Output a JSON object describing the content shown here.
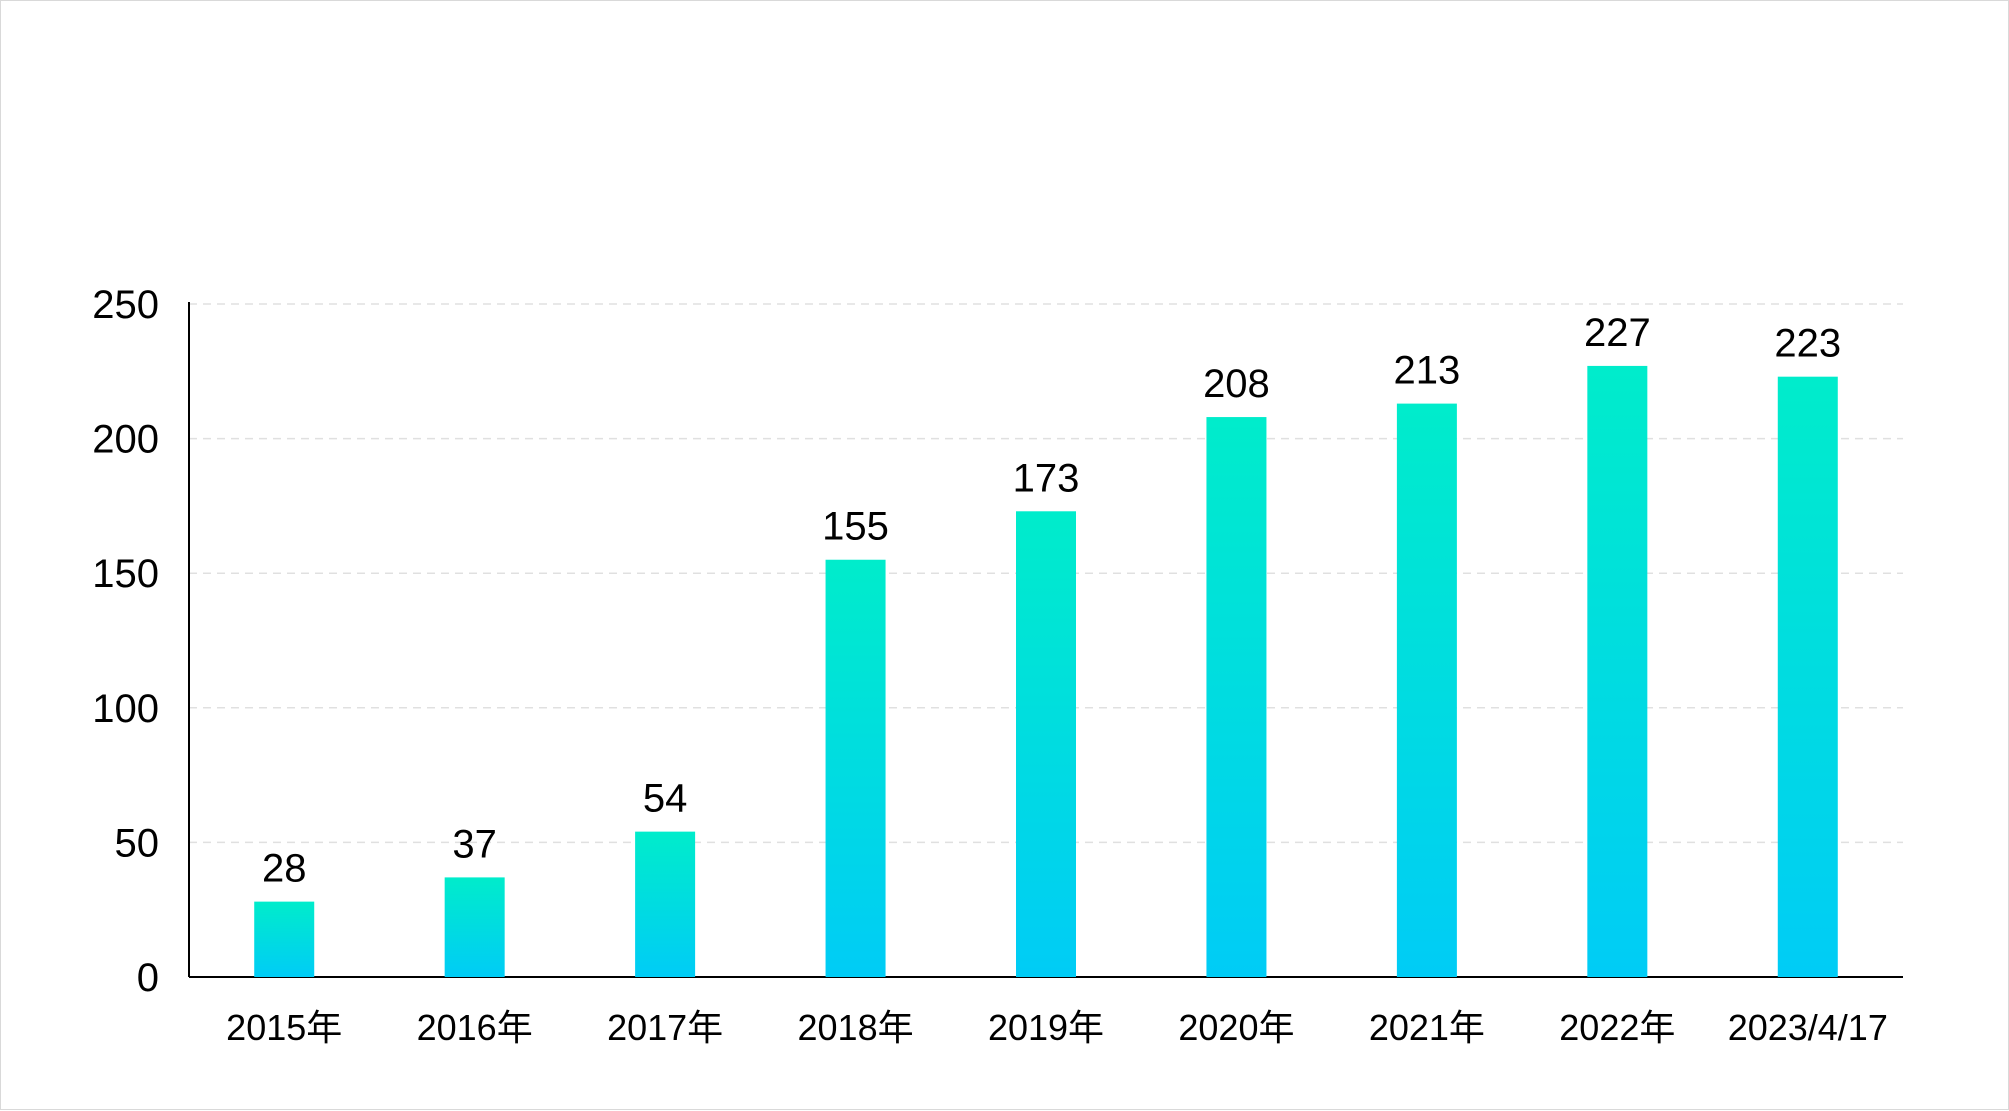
{
  "chart_data": {
    "type": "bar",
    "categories": [
      "2015年",
      "2016年",
      "2017年",
      "2018年",
      "2019年",
      "2020年",
      "2021年",
      "2022年",
      "2023/4/17"
    ],
    "values": [
      28,
      37,
      54,
      155,
      173,
      208,
      213,
      227,
      223
    ],
    "title": "",
    "xlabel": "",
    "ylabel": "",
    "ylim": [
      0,
      250
    ],
    "yticks": [
      0,
      50,
      100,
      150,
      200,
      250
    ],
    "grid": true,
    "data_labels": true,
    "legend": "none",
    "colors": {
      "bar_top": "#00ECCB",
      "bar_bottom": "#00CCF6",
      "grid": "#e0e0e0",
      "axis": "#000000"
    }
  }
}
